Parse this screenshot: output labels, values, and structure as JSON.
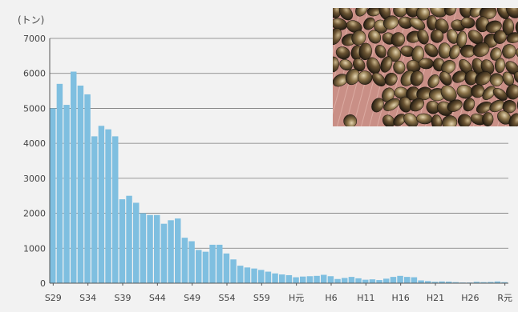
{
  "colors": {
    "background": "#f2f2f2",
    "bar_fill": "#7fbfe0",
    "bar_stroke": "#ffffff",
    "grid": "#7a7a7a",
    "axis": "#555555",
    "text": "#444444"
  },
  "chart_data": {
    "type": "bar",
    "title": "",
    "ylabel": "(トン)",
    "xlabel": "",
    "ylim": [
      0,
      7000
    ],
    "yticks": [
      0,
      1000,
      2000,
      3000,
      4000,
      5000,
      6000,
      7000
    ],
    "grid": true,
    "legend": "none",
    "x_tick_labels": [
      "S29",
      "S34",
      "S39",
      "S44",
      "S49",
      "S54",
      "S59",
      "H元",
      "H6",
      "H11",
      "H16",
      "H21",
      "H26",
      "R元"
    ],
    "x_tick_every": 5,
    "categories": [
      "S29",
      "S30",
      "S31",
      "S32",
      "S33",
      "S34",
      "S35",
      "S36",
      "S37",
      "S38",
      "S39",
      "S40",
      "S41",
      "S42",
      "S43",
      "S44",
      "S45",
      "S46",
      "S47",
      "S48",
      "S49",
      "S50",
      "S51",
      "S52",
      "S53",
      "S54",
      "S55",
      "S56",
      "S57",
      "S58",
      "S59",
      "S60",
      "S61",
      "S62",
      "S63",
      "H元",
      "H2",
      "H3",
      "H4",
      "H5",
      "H6",
      "H7",
      "H8",
      "H9",
      "H10",
      "H11",
      "H12",
      "H13",
      "H14",
      "H15",
      "H16",
      "H17",
      "H18",
      "H19",
      "H20",
      "H21",
      "H22",
      "H23",
      "H24",
      "H25",
      "H26",
      "H27",
      "H28",
      "H29",
      "H30",
      "R元"
    ],
    "values": [
      5000,
      5700,
      5100,
      6050,
      5650,
      5400,
      4200,
      4500,
      4400,
      4200,
      2400,
      2500,
      2300,
      2000,
      1950,
      1950,
      1700,
      1800,
      1850,
      1300,
      1200,
      950,
      900,
      1100,
      1100,
      850,
      680,
      500,
      450,
      420,
      380,
      330,
      280,
      250,
      230,
      170,
      190,
      200,
      210,
      240,
      200,
      120,
      150,
      180,
      140,
      100,
      110,
      90,
      130,
      180,
      210,
      180,
      170,
      80,
      60,
      40,
      50,
      45,
      30,
      20,
      20,
      40,
      30,
      35,
      50,
      30
    ]
  },
  "photo": {
    "subject": "shijimi-clams-photo"
  }
}
